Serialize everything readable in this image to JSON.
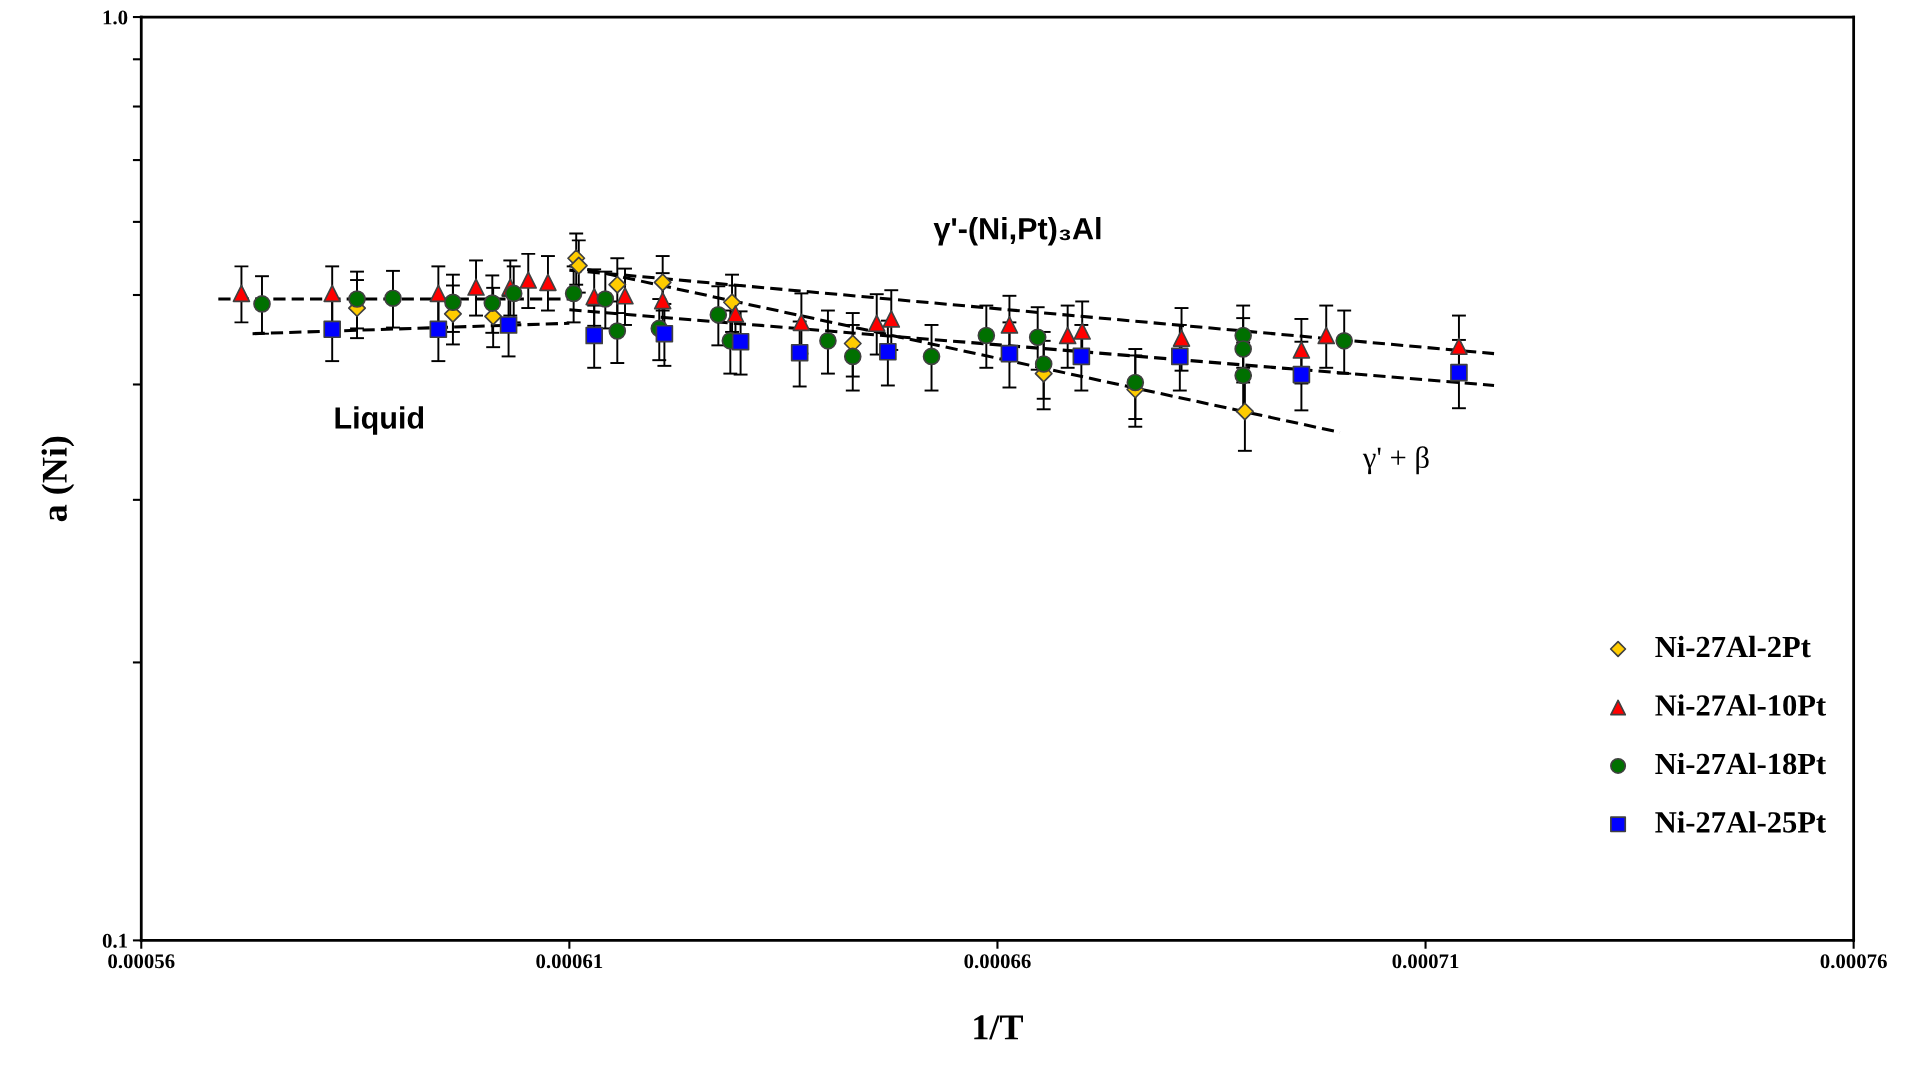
{
  "chart_data": {
    "type": "scatter",
    "xlabel": "1/T",
    "ylabel": "a (Ni)",
    "log": "y",
    "grid": false,
    "legend": "right",
    "xlim": [
      0.00056,
      0.00076
    ],
    "xticks": [
      0.00056,
      0.00061,
      0.00066,
      0.00071,
      0.00076
    ],
    "ylim": [
      0.1,
      1.0
    ],
    "yticks": [
      {
        "value": 0.1,
        "label": "0.1"
      },
      {
        "value": 0.2,
        "label": null
      },
      {
        "value": 0.3,
        "label": null
      },
      {
        "value": 0.4,
        "label": null
      },
      {
        "value": 0.5,
        "label": null
      },
      {
        "value": 0.6,
        "label": null
      },
      {
        "value": 0.7,
        "label": null
      },
      {
        "value": 0.8,
        "label": null
      },
      {
        "value": 0.9,
        "label": null
      },
      {
        "value": 1.0,
        "label": "1.0"
      }
    ],
    "annotations": [
      "Liquid",
      "γ'-(Ni,Pt)₃Al",
      "γ' + β"
    ],
    "series": [
      {
        "type": "line",
        "color": "#000000",
        "line_style": "dashed",
        "marker": "none",
        "x": [
          0.000569,
          0.00061
        ],
        "values": [
          0.495,
          0.495
        ]
      },
      {
        "type": "line",
        "color": "#000000",
        "line_style": "dashed",
        "marker": "none",
        "x": [
          0.000573,
          0.00061
        ],
        "values": [
          0.454,
          0.466
        ]
      },
      {
        "type": "line",
        "color": "#000000",
        "line_style": "dashed",
        "marker": "none",
        "x": [
          0.00061,
          0.000718
        ],
        "values": [
          0.532,
          0.432
        ]
      },
      {
        "type": "line",
        "color": "#000000",
        "line_style": "dashed",
        "marker": "none",
        "x": [
          0.00061,
          0.000718
        ],
        "values": [
          0.482,
          0.399
        ]
      },
      {
        "type": "line",
        "color": "#000000",
        "line_style": "dashed",
        "marker": "none",
        "x": [
          0.00061,
          0.0007
        ],
        "values": [
          0.538,
          0.355
        ]
      },
      {
        "name": "Ni-27Al-2Pt",
        "color": "#ffcc00",
        "marker": "diamond",
        "x": [
          0.0005852,
          0.0005964,
          0.0006011,
          0.0006108,
          0.0006111,
          0.0006156,
          0.0006209,
          0.000629,
          0.0006431,
          0.0006654,
          0.0006761,
          0.0006889
        ],
        "values": [
          0.484,
          0.477,
          0.474,
          0.548,
          0.538,
          0.513,
          0.516,
          0.491,
          0.443,
          0.411,
          0.395,
          0.374
        ],
        "errors": [
          0.035,
          0.035,
          0.035,
          0.035,
          0.035,
          0.035,
          0.035,
          0.035,
          0.035,
          0.035,
          0.035,
          0.035
        ]
      },
      {
        "name": "Ni-27Al-10Pt",
        "color": "#ff0000",
        "marker": "triangle",
        "x": [
          0.0005717,
          0.0005823,
          0.0005947,
          0.0005991,
          0.0006031,
          0.0006052,
          0.0006075,
          0.0006129,
          0.0006165,
          0.0006209,
          0.0006294,
          0.0006371,
          0.0006459,
          0.0006476,
          0.0006614,
          0.0006682,
          0.0006699,
          0.0006815,
          0.0006955,
          0.0006984,
          0.0007139
        ],
        "values": [
          0.502,
          0.502,
          0.502,
          0.51,
          0.51,
          0.519,
          0.516,
          0.498,
          0.499,
          0.493,
          0.477,
          0.467,
          0.466,
          0.471,
          0.464,
          0.452,
          0.457,
          0.449,
          0.436,
          0.452,
          0.44
        ],
        "errors": [
          0.035,
          0.035,
          0.035,
          0.035,
          0.035,
          0.035,
          0.035,
          0.035,
          0.035,
          0.035,
          0.035,
          0.035,
          0.035,
          0.035,
          0.035,
          0.035,
          0.035,
          0.035,
          0.035,
          0.035,
          0.035
        ]
      },
      {
        "name": "Ni-27Al-18Pt",
        "color": "#007000",
        "marker": "circle",
        "x": [
          0.0005741,
          0.0005852,
          0.0005894,
          0.0005964,
          0.000601,
          0.0006035,
          0.0006105,
          0.0006142,
          0.0006156,
          0.0006205,
          0.0006274,
          0.0006288,
          0.0006402,
          0.0006431,
          0.0006523,
          0.0006587,
          0.0006647,
          0.0006654,
          0.0006761,
          0.0006887,
          0.0006887,
          0.0006887,
          0.0007005
        ],
        "values": [
          0.489,
          0.495,
          0.496,
          0.491,
          0.49,
          0.502,
          0.502,
          0.495,
          0.457,
          0.46,
          0.476,
          0.446,
          0.446,
          0.429,
          0.429,
          0.452,
          0.45,
          0.421,
          0.402,
          0.452,
          0.437,
          0.409,
          0.446
        ],
        "errors": [
          0.035,
          0.035,
          0.035,
          0.035,
          0.035,
          0.035,
          0.035,
          0.035,
          0.035,
          0.035,
          0.035,
          0.035,
          0.035,
          0.035,
          0.035,
          0.035,
          0.035,
          0.035,
          0.035,
          0.035,
          0.035,
          0.035,
          0.035
        ]
      },
      {
        "name": "Ni-27Al-25Pt",
        "color": "#0000ff",
        "marker": "square",
        "x": [
          0.0005823,
          0.0005947,
          0.0006029,
          0.0006129,
          0.0006211,
          0.00063,
          0.0006369,
          0.0006472,
          0.0006614,
          0.0006698,
          0.0006813,
          0.0006955,
          0.0007139
        ],
        "values": [
          0.459,
          0.459,
          0.464,
          0.452,
          0.454,
          0.445,
          0.433,
          0.434,
          0.432,
          0.429,
          0.429,
          0.41,
          0.412
        ],
        "errors": [
          0.035,
          0.035,
          0.035,
          0.035,
          0.035,
          0.035,
          0.035,
          0.035,
          0.035,
          0.035,
          0.035,
          0.035,
          0.035
        ]
      }
    ]
  }
}
